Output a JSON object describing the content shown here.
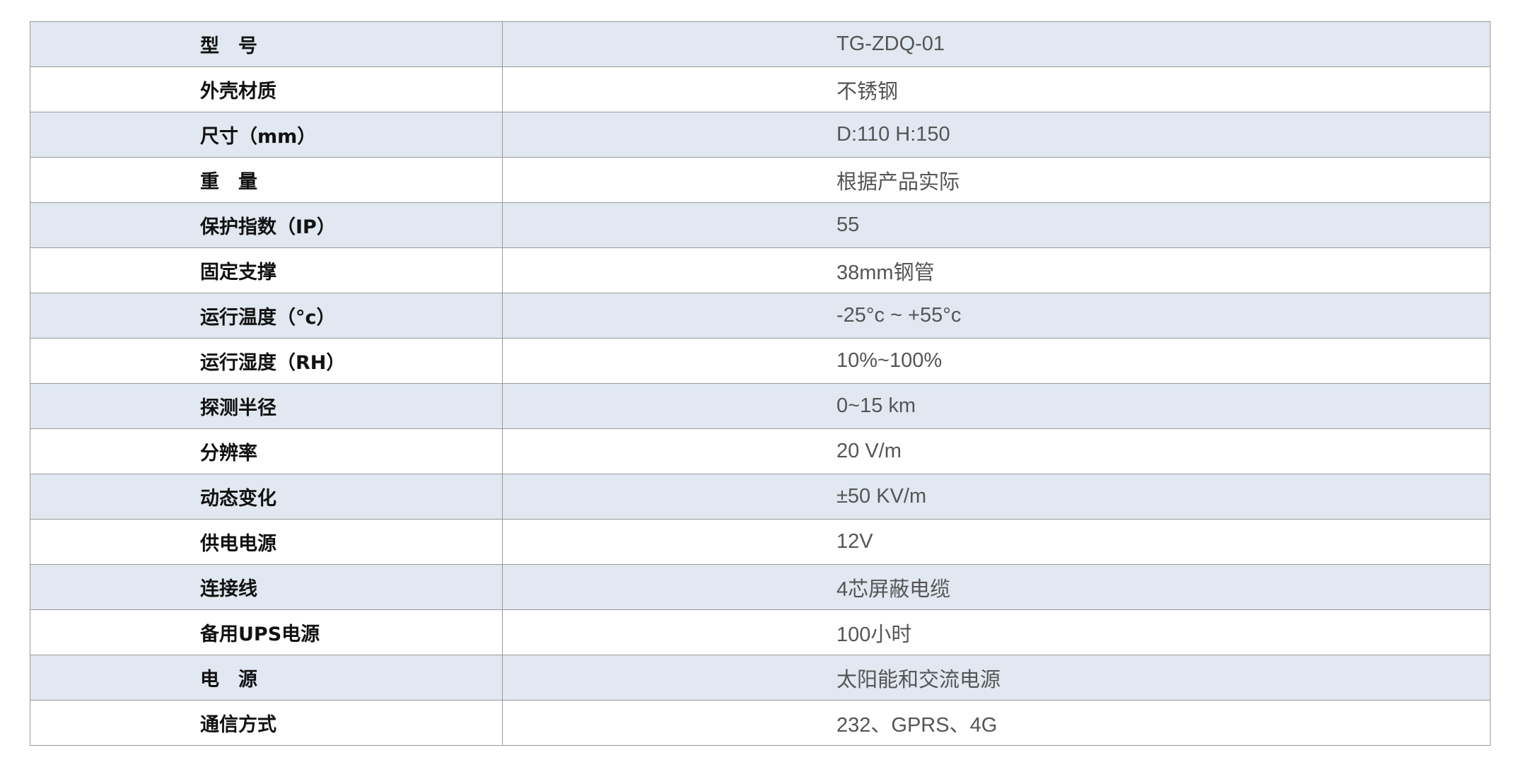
{
  "spec_table": {
    "rows": [
      {
        "label": "型　号",
        "value": "TG-ZDQ-01"
      },
      {
        "label": "外壳材质",
        "value": "不锈钢"
      },
      {
        "label": "尺寸（mm）",
        "value": "D:110 H:150"
      },
      {
        "label": "重　量",
        "value": "根据产品实际"
      },
      {
        "label": "保护指数（IP）",
        "value": "55"
      },
      {
        "label": "固定支撑",
        "value": "38mm钢管"
      },
      {
        "label": "运行温度（°c）",
        "value": "-25°c ~ +55°c"
      },
      {
        "label": "运行湿度（RH）",
        "value": "10%~100%"
      },
      {
        "label": "探测半径",
        "value": "0~15 km"
      },
      {
        "label": "分辨率",
        "value": "20 V/m"
      },
      {
        "label": "动态变化",
        "value": "±50 KV/m"
      },
      {
        "label": "供电电源",
        "value": "12V"
      },
      {
        "label": "连接线",
        "value": "4芯屏蔽电缆"
      },
      {
        "label": "备用UPS电源",
        "value": "100小时"
      },
      {
        "label": "电　源",
        "value": "太阳能和交流电源"
      },
      {
        "label": "通信方式",
        "value": "232、GPRS、4G"
      }
    ],
    "colors": {
      "alt_row": "#e1e8f1",
      "border": "#9a9a9a",
      "label": "#111111",
      "value": "#555555"
    }
  }
}
